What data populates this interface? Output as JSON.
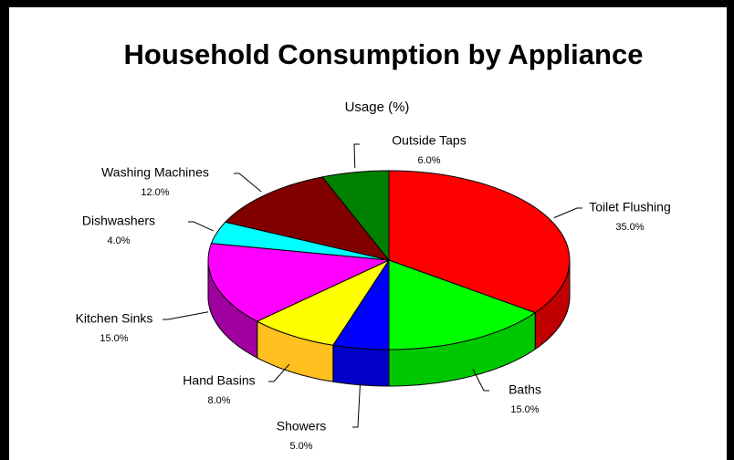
{
  "chart_data": {
    "type": "pie3d",
    "title": "Household Consumption by Appliance",
    "subtitle": "Usage (%)",
    "categories": [
      "Toilet Flushing",
      "Baths",
      "Showers",
      "Hand Basins",
      "Kitchen Sinks",
      "Dishwashers",
      "Washing Machines",
      "Outside Taps"
    ],
    "values": [
      35,
      15,
      5,
      8,
      15,
      4,
      12,
      6
    ],
    "value_labels": [
      "35.0%",
      "15.0%",
      "5.0%",
      "8.0%",
      "15.0%",
      "4.0%",
      "12.0%",
      "6.0%"
    ],
    "colors": [
      "#ff0000",
      "#00ff00",
      "#0000ff",
      "#ffff00",
      "#ff00ff",
      "#00ffff",
      "#800000",
      "#008000"
    ],
    "side_colors": [
      "#c00000",
      "#00c800",
      "#0000c8",
      "#ffc020",
      "#a000a0",
      "#00c0c0",
      "#600000",
      "#006000"
    ]
  }
}
